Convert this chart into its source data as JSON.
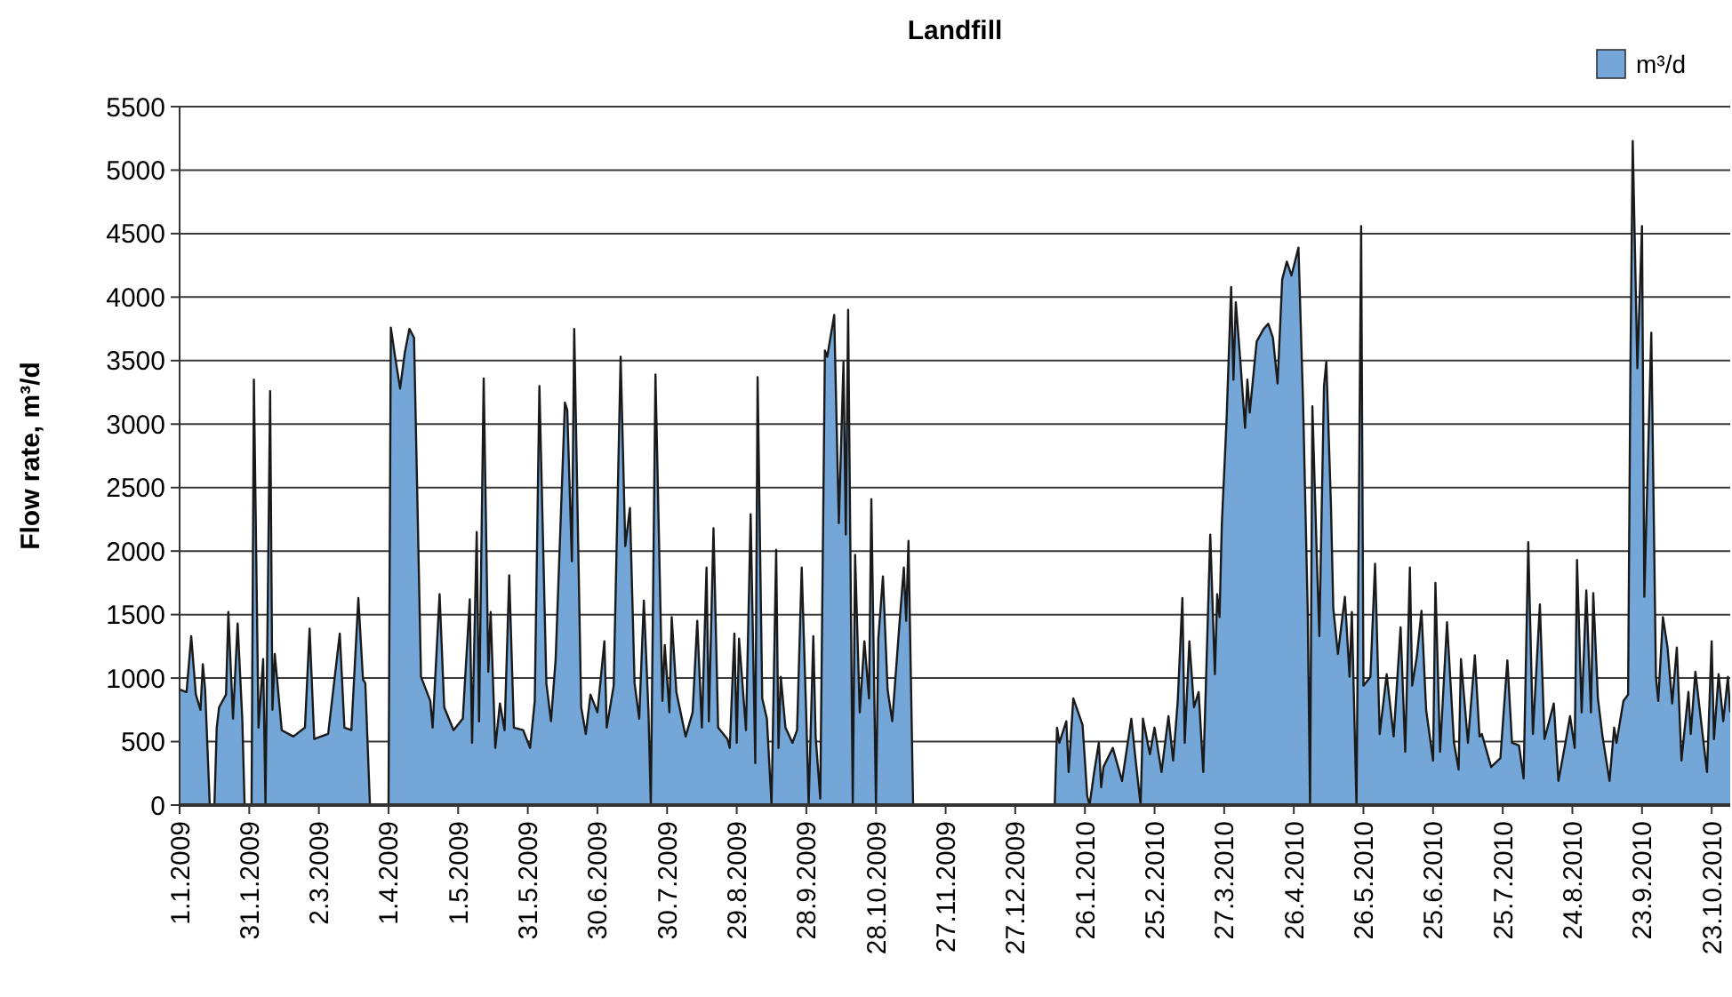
{
  "chart_data": {
    "type": "area",
    "title": "Landfill",
    "ylabel": "Flow rate, m³/d",
    "legend": "top right",
    "grid": "y",
    "line_style": "solid",
    "xlim": [
      "2009-01-01",
      "2010-10-31"
    ],
    "ylim": [
      0,
      5500
    ],
    "yticks": [
      0,
      500,
      1000,
      1500,
      2000,
      2500,
      3000,
      3500,
      4000,
      4500,
      5000,
      5500
    ],
    "xticks": [
      {
        "value": "2009-01-01",
        "label": "1.1.2009"
      },
      {
        "value": "2009-01-31",
        "label": "31.1.2009"
      },
      {
        "value": "2009-03-02",
        "label": "2.3.2009"
      },
      {
        "value": "2009-04-01",
        "label": "1.4.2009"
      },
      {
        "value": "2009-05-01",
        "label": "1.5.2009"
      },
      {
        "value": "2009-05-31",
        "label": "31.5.2009"
      },
      {
        "value": "2009-06-30",
        "label": "30.6.2009"
      },
      {
        "value": "2009-07-30",
        "label": "30.7.2009"
      },
      {
        "value": "2009-08-29",
        "label": "29.8.2009"
      },
      {
        "value": "2009-09-28",
        "label": "28.9.2009"
      },
      {
        "value": "2009-10-28",
        "label": "28.10.2009"
      },
      {
        "value": "2009-11-27",
        "label": "27.11.2009"
      },
      {
        "value": "2009-12-27",
        "label": "27.12.2009"
      },
      {
        "value": "2010-01-26",
        "label": "26.1.2010"
      },
      {
        "value": "2010-02-25",
        "label": "25.2.2010"
      },
      {
        "value": "2010-03-27",
        "label": "27.3.2010"
      },
      {
        "value": "2010-04-26",
        "label": "26.4.2010"
      },
      {
        "value": "2010-05-26",
        "label": "26.5.2010"
      },
      {
        "value": "2010-06-25",
        "label": "25.6.2010"
      },
      {
        "value": "2010-07-25",
        "label": "25.7.2010"
      },
      {
        "value": "2010-08-24",
        "label": "24.8.2010"
      },
      {
        "value": "2010-09-23",
        "label": "23.9.2010"
      },
      {
        "value": "2010-10-23",
        "label": "23.10.2010"
      }
    ],
    "x": [
      "2009-01-01",
      "2009-01-04",
      "2009-01-06",
      "2009-01-08",
      "2009-01-10",
      "2009-01-11",
      "2009-01-12",
      "2009-01-14",
      "2009-01-16",
      "2009-01-17",
      "2009-01-18",
      "2009-01-21",
      "2009-01-22",
      "2009-01-24",
      "2009-01-26",
      "2009-01-28",
      "2009-01-29",
      "2009-02-01",
      "2009-02-02",
      "2009-02-04",
      "2009-02-06",
      "2009-02-07",
      "2009-02-09",
      "2009-02-10",
      "2009-02-11",
      "2009-02-14",
      "2009-02-19",
      "2009-02-24",
      "2009-02-26",
      "2009-02-28",
      "2009-03-06",
      "2009-03-11",
      "2009-03-13",
      "2009-03-16",
      "2009-03-19",
      "2009-03-21",
      "2009-03-22",
      "2009-03-24",
      "2009-04-01",
      "2009-04-02",
      "2009-04-04",
      "2009-04-06",
      "2009-04-08",
      "2009-04-10",
      "2009-04-12",
      "2009-04-15",
      "2009-04-19",
      "2009-04-20",
      "2009-04-23",
      "2009-04-25",
      "2009-04-29",
      "2009-05-03",
      "2009-05-06",
      "2009-05-07",
      "2009-05-09",
      "2009-05-10",
      "2009-05-12",
      "2009-05-14",
      "2009-05-15",
      "2009-05-17",
      "2009-05-19",
      "2009-05-21",
      "2009-05-23",
      "2009-05-25",
      "2009-05-29",
      "2009-06-01",
      "2009-06-03",
      "2009-06-05",
      "2009-06-08",
      "2009-06-10",
      "2009-06-12",
      "2009-06-16",
      "2009-06-17",
      "2009-06-19",
      "2009-06-20",
      "2009-06-23",
      "2009-06-25",
      "2009-06-27",
      "2009-06-30",
      "2009-07-03",
      "2009-07-04",
      "2009-07-07",
      "2009-07-10",
      "2009-07-12",
      "2009-07-14",
      "2009-07-16",
      "2009-07-18",
      "2009-07-20",
      "2009-07-22",
      "2009-07-23",
      "2009-07-25",
      "2009-07-28",
      "2009-07-29",
      "2009-07-31",
      "2009-08-01",
      "2009-08-03",
      "2009-08-07",
      "2009-08-10",
      "2009-08-12",
      "2009-08-14",
      "2009-08-16",
      "2009-08-17",
      "2009-08-19",
      "2009-08-21",
      "2009-08-25",
      "2009-08-26",
      "2009-08-28",
      "2009-08-29",
      "2009-08-30",
      "2009-09-02",
      "2009-09-04",
      "2009-09-06",
      "2009-09-07",
      "2009-09-09",
      "2009-09-11",
      "2009-09-13",
      "2009-09-15",
      "2009-09-16",
      "2009-09-17",
      "2009-09-19",
      "2009-09-22",
      "2009-09-24",
      "2009-09-26",
      "2009-09-28",
      "2009-09-29",
      "2009-10-01",
      "2009-10-02",
      "2009-10-04",
      "2009-10-06",
      "2009-10-07",
      "2009-10-10",
      "2009-10-12",
      "2009-10-14",
      "2009-10-15",
      "2009-10-16",
      "2009-10-18",
      "2009-10-19",
      "2009-10-21",
      "2009-10-23",
      "2009-10-25",
      "2009-10-26",
      "2009-10-28",
      "2009-10-29",
      "2009-10-31",
      "2009-11-02",
      "2009-11-04",
      "2009-11-07",
      "2009-11-09",
      "2009-11-10",
      "2009-11-11",
      "2009-11-13",
      "2010-01-13",
      "2010-01-14",
      "2010-01-15",
      "2010-01-18",
      "2010-01-19",
      "2010-01-21",
      "2010-01-25",
      "2010-01-27",
      "2010-01-28",
      "2010-01-30",
      "2010-02-01",
      "2010-02-02",
      "2010-02-03",
      "2010-02-07",
      "2010-02-11",
      "2010-02-15",
      "2010-02-17",
      "2010-02-19",
      "2010-02-20",
      "2010-02-23",
      "2010-02-25",
      "2010-02-28",
      "2010-03-03",
      "2010-03-05",
      "2010-03-07",
      "2010-03-09",
      "2010-03-10",
      "2010-03-12",
      "2010-03-14",
      "2010-03-16",
      "2010-03-18",
      "2010-03-19",
      "2010-03-21",
      "2010-03-23",
      "2010-03-24",
      "2010-03-25",
      "2010-03-26",
      "2010-03-28",
      "2010-03-30",
      "2010-03-31",
      "2010-04-01",
      "2010-04-03",
      "2010-04-05",
      "2010-04-06",
      "2010-04-07",
      "2010-04-10",
      "2010-04-13",
      "2010-04-15",
      "2010-04-17",
      "2010-04-19",
      "2010-04-21",
      "2010-04-23",
      "2010-04-25",
      "2010-04-28",
      "2010-04-30",
      "2010-05-02",
      "2010-05-03",
      "2010-05-04",
      "2010-05-06",
      "2010-05-07",
      "2010-05-09",
      "2010-05-10",
      "2010-05-12",
      "2010-05-13",
      "2010-05-15",
      "2010-05-18",
      "2010-05-20",
      "2010-05-21",
      "2010-05-23",
      "2010-05-25",
      "2010-05-26",
      "2010-05-29",
      "2010-05-31",
      "2010-06-02",
      "2010-06-05",
      "2010-06-08",
      "2010-06-11",
      "2010-06-13",
      "2010-06-15",
      "2010-06-16",
      "2010-06-18",
      "2010-06-20",
      "2010-06-22",
      "2010-06-25",
      "2010-06-26",
      "2010-06-28",
      "2010-07-01",
      "2010-07-04",
      "2010-07-06",
      "2010-07-07",
      "2010-07-10",
      "2010-07-13",
      "2010-07-15",
      "2010-07-16",
      "2010-07-20",
      "2010-07-24",
      "2010-07-27",
      "2010-07-29",
      "2010-08-01",
      "2010-08-03",
      "2010-08-05",
      "2010-08-07",
      "2010-08-10",
      "2010-08-12",
      "2010-08-16",
      "2010-08-18",
      "2010-08-21",
      "2010-08-23",
      "2010-08-25",
      "2010-08-26",
      "2010-08-28",
      "2010-08-30",
      "2010-09-01",
      "2010-09-02",
      "2010-09-04",
      "2010-09-06",
      "2010-09-09",
      "2010-09-11",
      "2010-09-12",
      "2010-09-15",
      "2010-09-17",
      "2010-09-18",
      "2010-09-19",
      "2010-09-21",
      "2010-09-23",
      "2010-09-24",
      "2010-09-27",
      "2010-09-29",
      "2010-09-30",
      "2010-10-02",
      "2010-10-04",
      "2010-10-06",
      "2010-10-08",
      "2010-10-10",
      "2010-10-13",
      "2010-10-14",
      "2010-10-16",
      "2010-10-18",
      "2010-10-21",
      "2010-10-23",
      "2010-10-24",
      "2010-10-26",
      "2010-10-28",
      "2010-10-30",
      "2010-10-31"
    ],
    "series": [
      {
        "name": "m³/d",
        "color": "#74a7d8",
        "values": [
          910,
          890,
          1330,
          870,
          750,
          1110,
          910,
          0,
          0,
          610,
          770,
          870,
          1520,
          680,
          1430,
          680,
          0,
          0,
          3350,
          610,
          1150,
          0,
          3260,
          750,
          1190,
          590,
          540,
          610,
          1390,
          520,
          560,
          1350,
          610,
          590,
          1630,
          990,
          960,
          0,
          0,
          3760,
          3510,
          3280,
          3560,
          3750,
          3680,
          1010,
          820,
          610,
          1660,
          770,
          590,
          680,
          1620,
          490,
          2150,
          660,
          3360,
          1050,
          1520,
          450,
          800,
          590,
          1810,
          610,
          590,
          450,
          820,
          3300,
          960,
          660,
          1150,
          3170,
          3110,
          1920,
          3750,
          770,
          560,
          870,
          730,
          1290,
          610,
          940,
          3530,
          2040,
          2340,
          960,
          680,
          1610,
          730,
          0,
          3390,
          820,
          1260,
          730,
          1480,
          890,
          540,
          730,
          1450,
          610,
          1870,
          660,
          2180,
          610,
          520,
          450,
          1350,
          490,
          1310,
          590,
          2290,
          330,
          3370,
          840,
          680,
          0,
          2010,
          450,
          1010,
          610,
          490,
          590,
          1870,
          680,
          0,
          1330,
          540,
          50,
          3580,
          3530,
          3860,
          2220,
          3490,
          2130,
          3900,
          0,
          1970,
          730,
          1290,
          840,
          2410,
          0,
          1310,
          1800,
          910,
          660,
          1400,
          1870,
          1450,
          2080,
          0,
          0,
          610,
          490,
          660,
          260,
          840,
          630,
          70,
          0,
          260,
          490,
          140,
          300,
          450,
          190,
          680,
          330,
          0,
          680,
          400,
          610,
          260,
          700,
          350,
          820,
          1630,
          490,
          1290,
          770,
          890,
          260,
          870,
          2130,
          1030,
          1660,
          1480,
          2220,
          3020,
          4080,
          3350,
          3960,
          3490,
          2970,
          3350,
          3090,
          3650,
          3750,
          3790,
          3680,
          3320,
          4140,
          4280,
          4170,
          4390,
          3160,
          1520,
          0,
          3140,
          1900,
          1330,
          3300,
          3490,
          2360,
          1550,
          1190,
          1640,
          1010,
          1520,
          0,
          4560,
          940,
          1010,
          1900,
          560,
          1030,
          540,
          1400,
          420,
          1870,
          940,
          1170,
          1530,
          750,
          350,
          1750,
          420,
          1440,
          490,
          280,
          1150,
          490,
          1180,
          540,
          560,
          300,
          370,
          1140,
          490,
          470,
          210,
          2070,
          560,
          1580,
          520,
          800,
          190,
          490,
          700,
          450,
          1930,
          730,
          1690,
          730,
          1670,
          840,
          540,
          190,
          610,
          490,
          820,
          870,
          3440,
          5230,
          3440,
          4560,
          1640,
          3720,
          1010,
          820,
          1480,
          1240,
          800,
          1240,
          350,
          890,
          560,
          1050,
          730,
          260,
          1290,
          520,
          1030,
          660,
          1010,
          730
        ]
      }
    ]
  }
}
